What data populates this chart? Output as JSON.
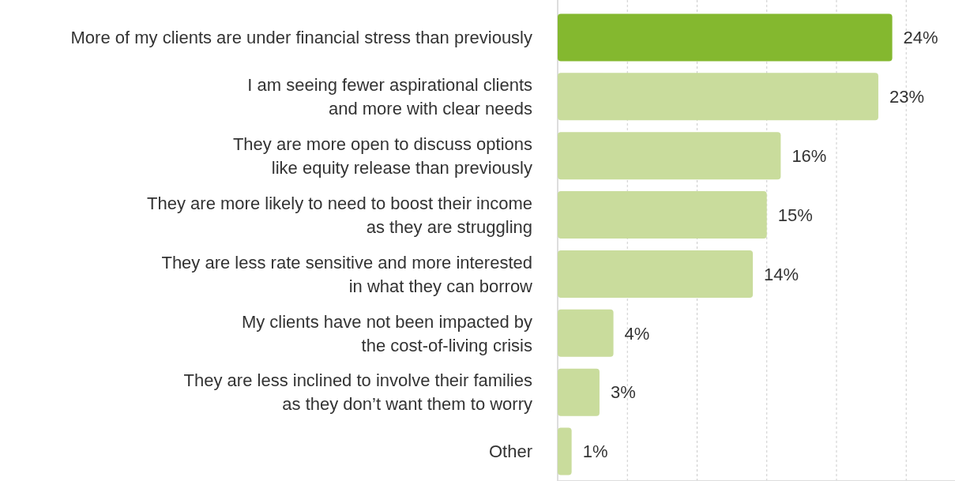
{
  "chart_data": {
    "type": "bar",
    "orientation": "horizontal",
    "categories": [
      "More of my clients are under financial stress than previously",
      "I am seeing fewer aspirational clients\nand more with clear needs",
      "They are more open to discuss options\nlike equity release than previously",
      "They are more likely to need to boost their income\nas they are struggling",
      "They are less rate sensitive and more interested\nin what they can borrow",
      "My clients have not been impacted by\nthe cost-of-living crisis",
      "They are less inclined to involve their families\nas they don’t want them to worry",
      "Other"
    ],
    "values": [
      24,
      23,
      16,
      15,
      14,
      4,
      3,
      1
    ],
    "value_labels": [
      "24%",
      "23%",
      "16%",
      "15%",
      "14%",
      "4%",
      "3%",
      "1%"
    ],
    "colors": [
      "#84b82f",
      "#c9dc9c",
      "#c9dc9c",
      "#c9dc9c",
      "#c9dc9c",
      "#c9dc9c",
      "#c9dc9c",
      "#c9dc9c"
    ],
    "xlim": [
      0,
      28.5
    ],
    "xticks": [
      {
        "value": 0,
        "label": null
      },
      {
        "value": 5,
        "label": null
      },
      {
        "value": 10,
        "label": null
      },
      {
        "value": 15,
        "label": null
      },
      {
        "value": 20,
        "label": null
      },
      {
        "value": 25,
        "label": null
      }
    ],
    "grid": "x",
    "tick_labels": "y"
  }
}
